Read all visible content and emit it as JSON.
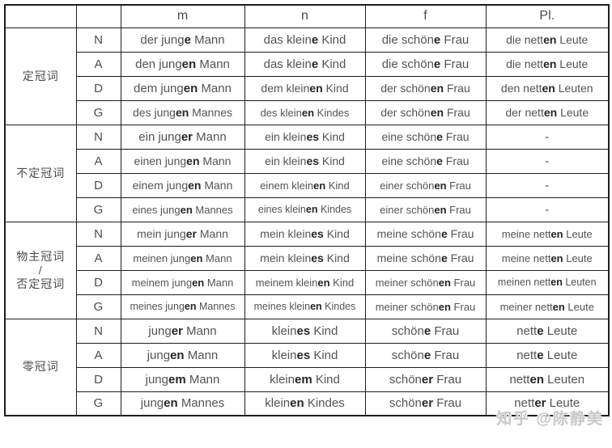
{
  "table": {
    "header": [
      "",
      "",
      "m",
      "n",
      "f",
      "Pl."
    ],
    "groups": [
      {
        "label_lines": [
          "定冠词"
        ],
        "rows": [
          {
            "case": "N",
            "cells": [
              "der jung**e** Mann",
              "das klein**e** Kind",
              "die schön**e** Frau",
              "die nett**en** Leute"
            ]
          },
          {
            "case": "A",
            "cells": [
              "den jung**en** Mann",
              "das klein**e** Kind",
              "die schön**e** Frau",
              "die nett**en** Leute"
            ]
          },
          {
            "case": "D",
            "cells": [
              "dem jung**en** Mann",
              "dem klein**en** Kind",
              "der schön**en** Frau",
              "den nett**en** Leuten"
            ]
          },
          {
            "case": "G",
            "cells": [
              "des jung**en** Mannes",
              "des klein**en** Kindes",
              "der schön**en** Frau",
              "der nett**en** Leute"
            ]
          }
        ]
      },
      {
        "label_lines": [
          "不定冠词"
        ],
        "rows": [
          {
            "case": "N",
            "cells": [
              "ein jung**er** Mann",
              "ein klein**es** Kind",
              "eine schön**e** Frau",
              "-"
            ]
          },
          {
            "case": "A",
            "cells": [
              "einen jung**en** Mann",
              "ein klein**es** Kind",
              "eine schön**e** Frau",
              "-"
            ]
          },
          {
            "case": "D",
            "cells": [
              "einem jung**en** Mann",
              "einem klein**en** Kind",
              "einer schön**en** Frau",
              "-"
            ]
          },
          {
            "case": "G",
            "cells": [
              "eines jung**en** Mannes",
              "eines klein**en** Kindes",
              "einer schön**en** Frau",
              "-"
            ]
          }
        ]
      },
      {
        "label_lines": [
          "物主冠词",
          "/",
          "否定冠词"
        ],
        "rows": [
          {
            "case": "N",
            "cells": [
              "mein jung**er** Mann",
              "mein klein**es** Kind",
              "meine schön**e** Frau",
              "meine nett**en** Leute"
            ]
          },
          {
            "case": "A",
            "cells": [
              "meinen jung**en** Mann",
              "mein klein**es** Kind",
              "meine schön**e** Frau",
              "meine nett**en** Leute"
            ]
          },
          {
            "case": "D",
            "cells": [
              "meinem jung**en** Mann",
              "meinem klein**en** Kind",
              "meiner schön**en** Frau",
              "meinen nett**en** Leuten"
            ]
          },
          {
            "case": "G",
            "cells": [
              "meines jung**en** Mannes",
              "meines klein**en** Kindes",
              "meiner schön**en** Frau",
              "meiner nett**en** Leute"
            ]
          }
        ]
      },
      {
        "label_lines": [
          "零冠词"
        ],
        "rows": [
          {
            "case": "N",
            "cells": [
              "jung**er** Mann",
              "klein**es** Kind",
              "schön**e** Frau",
              "nett**e** Leute"
            ]
          },
          {
            "case": "A",
            "cells": [
              "jung**en** Mann",
              "klein**es** Kind",
              "schön**e** Frau",
              "nett**e** Leute"
            ]
          },
          {
            "case": "D",
            "cells": [
              "jung**em** Mann",
              "klein**em** Kind",
              "schön**er** Frau",
              "nett**en** Leuten"
            ]
          },
          {
            "case": "G",
            "cells": [
              "jung**en** Mannes",
              "klein**en** Kindes",
              "schön**er** Frau",
              "nett**er** Leute"
            ]
          }
        ]
      }
    ]
  },
  "watermark": "知乎 @陈静美"
}
